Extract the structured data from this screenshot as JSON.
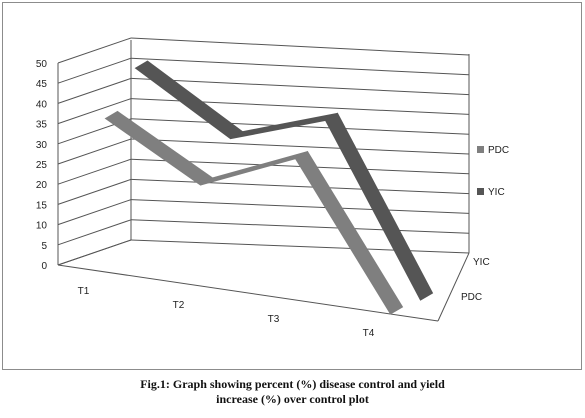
{
  "chart_data": {
    "type": "line",
    "style": "3d",
    "categories": [
      "T1",
      "T2",
      "T3",
      "T4"
    ],
    "series": [
      {
        "name": "PDC",
        "values": [
          38,
          25,
          35,
          0
        ],
        "color": "#7f7f7f"
      },
      {
        "name": "YIC",
        "values": [
          47,
          33,
          41,
          0
        ],
        "color": "#555555"
      }
    ],
    "y_ticks": [
      "0",
      "5",
      "10",
      "15",
      "20",
      "25",
      "30",
      "35",
      "40",
      "45",
      "50"
    ],
    "ylim": [
      0,
      50
    ],
    "grid": true,
    "legend": [
      "PDC",
      "YIC"
    ],
    "legend_position": "right",
    "depth_labels": [
      "YIC",
      "PDC"
    ]
  },
  "caption": {
    "line1": "Fig.1: Graph showing percent (%) disease control and yield",
    "line2": "increase (%) over control plot"
  }
}
